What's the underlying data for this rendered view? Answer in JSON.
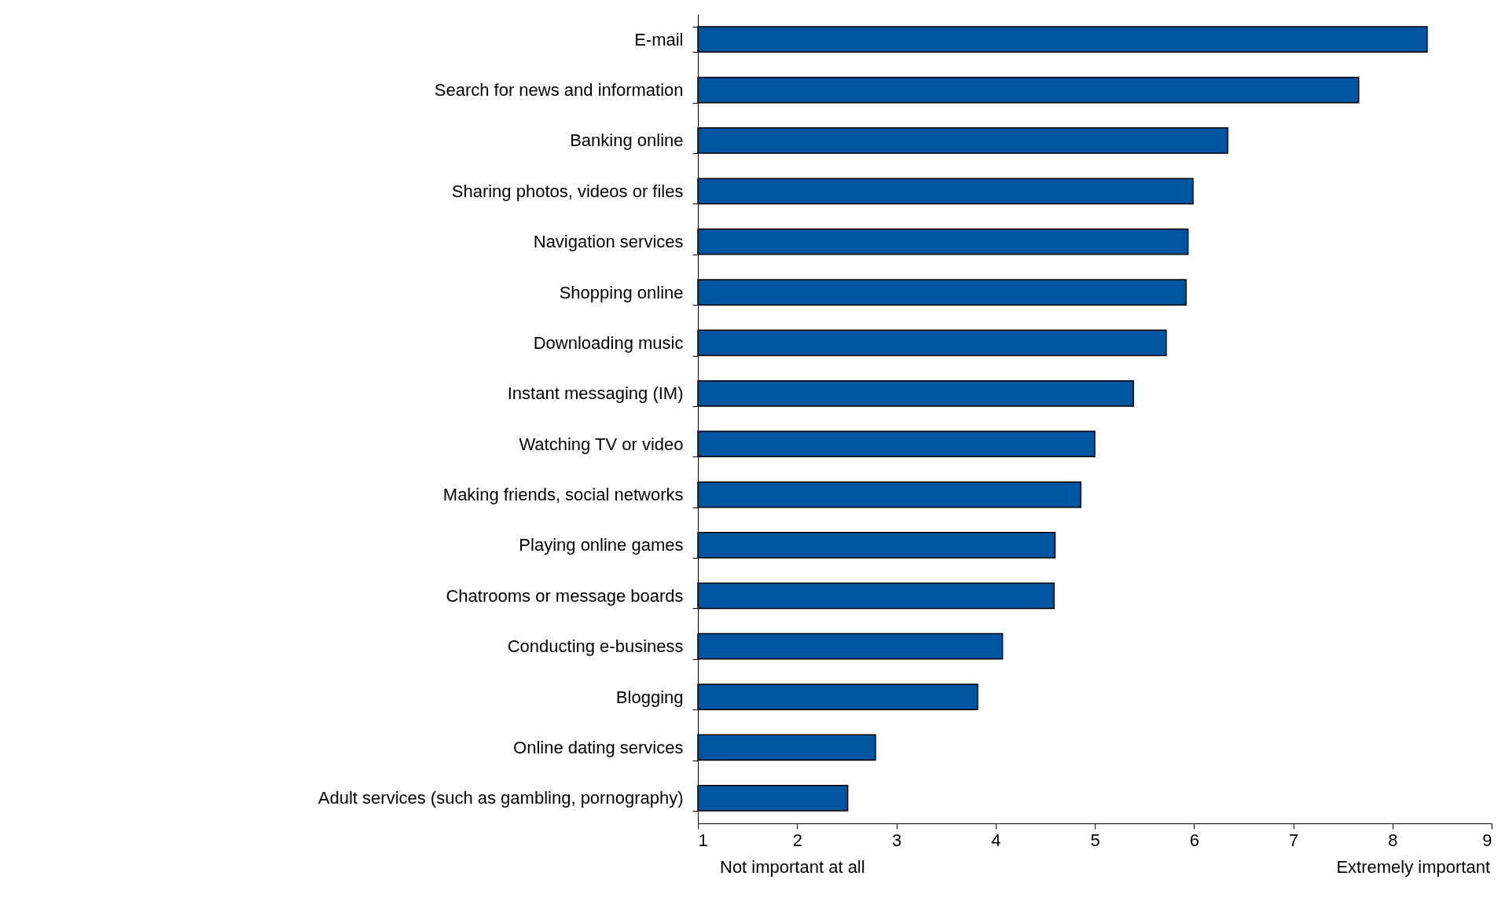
{
  "chart_data": {
    "type": "bar",
    "orientation": "horizontal",
    "categories": [
      "E-mail",
      "Search for news and information",
      "Banking online",
      "Sharing photos, videos or files",
      "Navigation services",
      "Shopping online",
      "Downloading music",
      "Instant messaging (IM)",
      "Watching TV or video",
      "Making friends, social networks",
      "Playing online games",
      "Chatrooms or message boards",
      "Conducting e-business",
      "Blogging",
      "Online dating services",
      "Adult services (such as gambling, pornography)"
    ],
    "values": [
      8.35,
      7.66,
      6.34,
      5.99,
      5.94,
      5.92,
      5.72,
      5.39,
      5.0,
      4.86,
      4.6,
      4.59,
      4.07,
      3.82,
      2.79,
      2.51
    ],
    "color": "#0055a0",
    "xlim": [
      1,
      9
    ],
    "xticks": [
      1,
      2,
      3,
      4,
      5,
      6,
      7,
      8,
      9
    ],
    "annotations": [
      "Not important at all",
      "Extremely important"
    ],
    "grid": false
  }
}
